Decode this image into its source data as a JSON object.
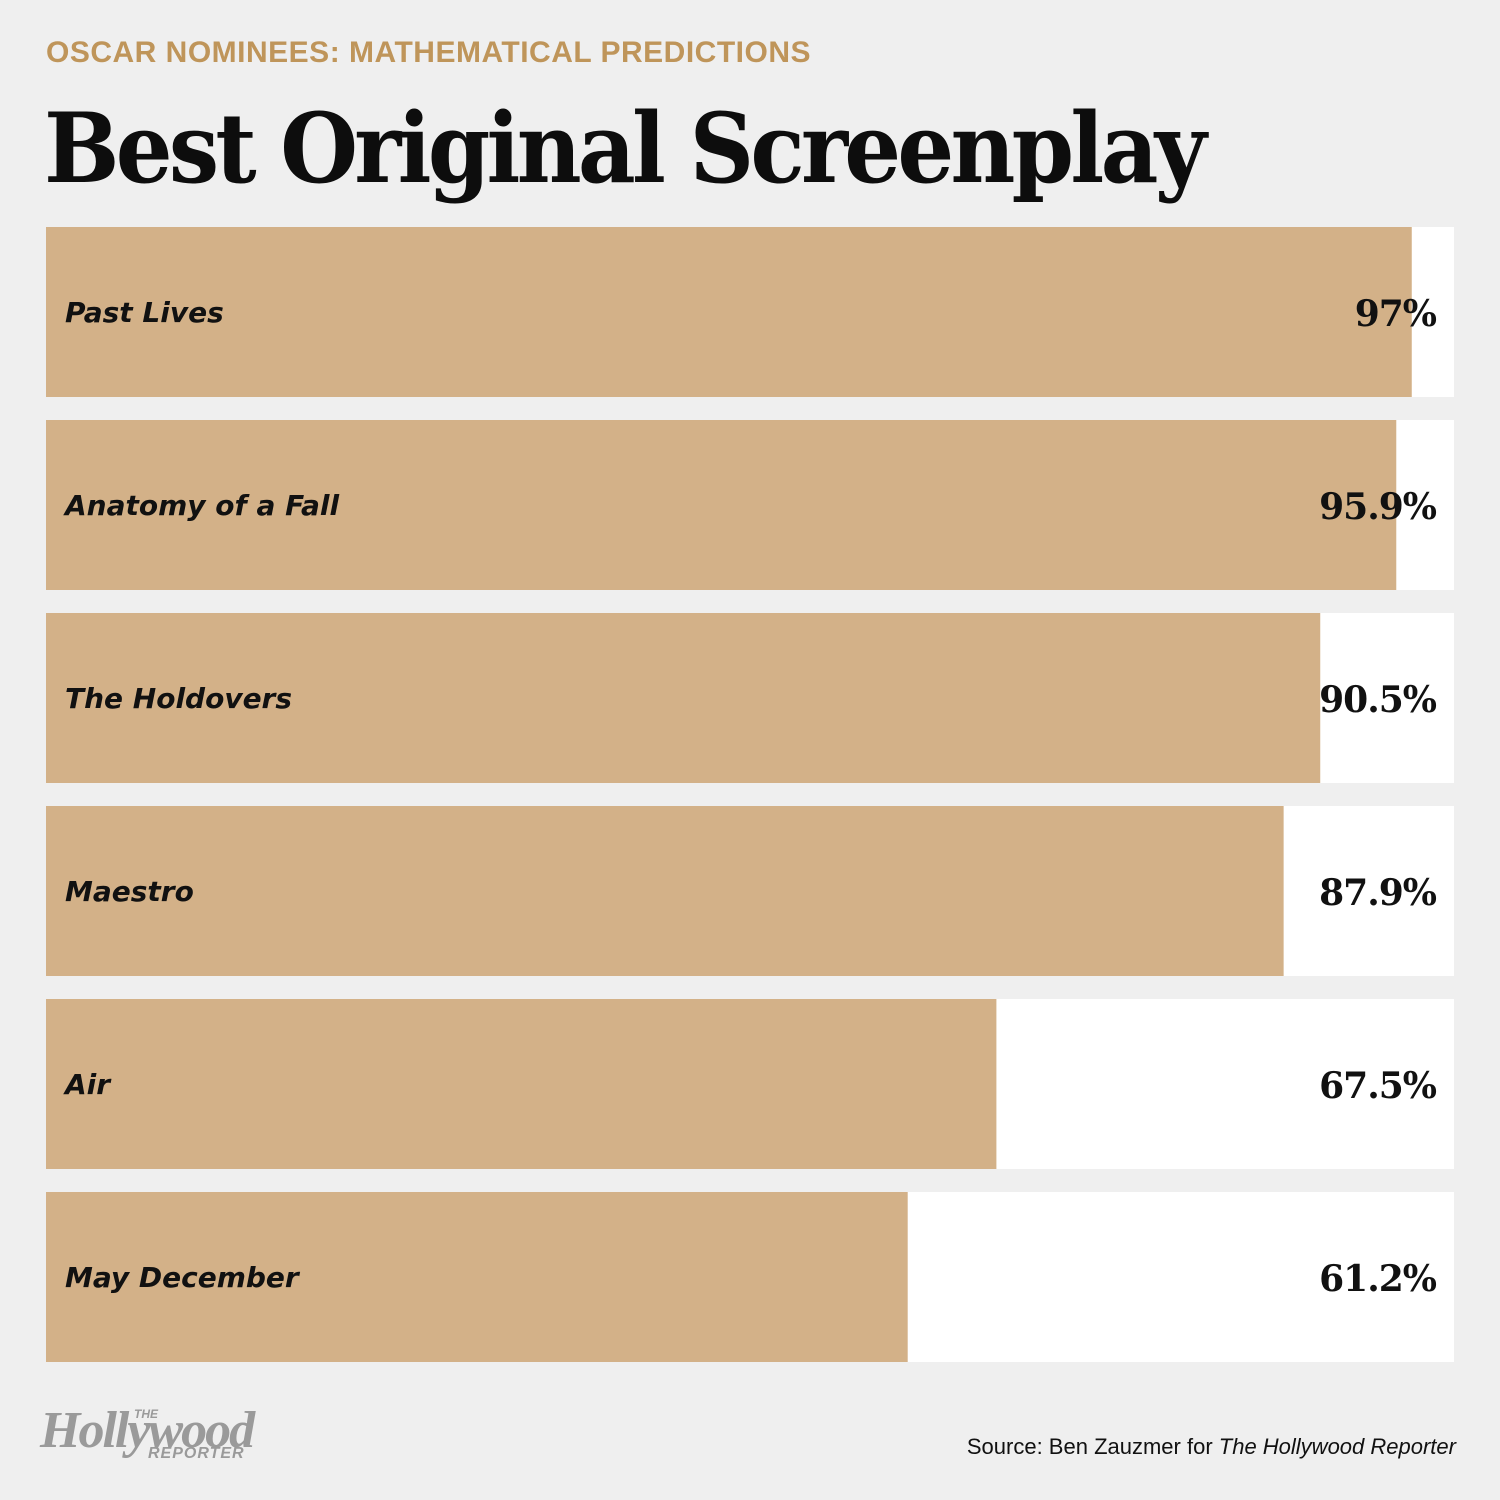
{
  "header": {
    "kicker": "OSCAR NOMINEES: MATHEMATICAL PREDICTIONS",
    "title": "Best Original Screenplay"
  },
  "chart_data": {
    "type": "bar",
    "orientation": "horizontal",
    "title": "Best Original Screenplay",
    "categories": [
      "Past Lives",
      "Anatomy of a Fall",
      "The Holdovers",
      "Maestro",
      "Air",
      "May December"
    ],
    "values": [
      97,
      95.9,
      90.5,
      87.9,
      67.5,
      61.2
    ],
    "value_labels": [
      "97%",
      "95.9%",
      "90.5%",
      "87.9%",
      "67.5%",
      "61.2%"
    ],
    "xlim": [
      0,
      100
    ],
    "grid": false,
    "legend": "none",
    "colors": {
      "bar": "#d3b188",
      "track": "#ffffff",
      "text": "#111111"
    }
  },
  "footer": {
    "logo_the": "THE",
    "logo_main": "Hollywood",
    "logo_sub": "REPORTER",
    "source_prefix": "Source: Ben Zauzmer for ",
    "source_pub": "The Hollywood Reporter"
  }
}
